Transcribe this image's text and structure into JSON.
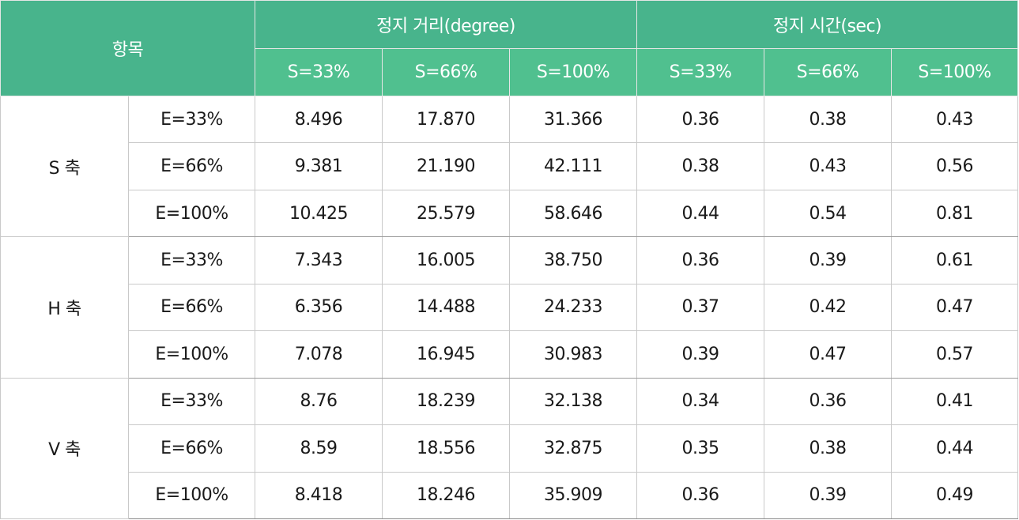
{
  "header": {
    "item_label": "항목",
    "group_distance": "정지 거리(degree)",
    "group_time": "정지 시간(sec)",
    "sub_columns": [
      "S=33%",
      "S=66%",
      "S=100%",
      "S=33%",
      "S=66%",
      "S=100%"
    ]
  },
  "groups": [
    {
      "axis": "S 축",
      "rows": [
        {
          "label": "E=33%",
          "values": [
            "8.496",
            "17.870",
            "31.366",
            "0.36",
            "0.38",
            "0.43"
          ]
        },
        {
          "label": "E=66%",
          "values": [
            "9.381",
            "21.190",
            "42.111",
            "0.38",
            "0.43",
            "0.56"
          ]
        },
        {
          "label": "E=100%",
          "values": [
            "10.425",
            "25.579",
            "58.646",
            "0.44",
            "0.54",
            "0.81"
          ]
        }
      ]
    },
    {
      "axis": "H 축",
      "rows": [
        {
          "label": "E=33%",
          "values": [
            "7.343",
            "16.005",
            "38.750",
            "0.36",
            "0.39",
            "0.61"
          ]
        },
        {
          "label": "E=66%",
          "values": [
            "6.356",
            "14.488",
            "24.233",
            "0.37",
            "0.42",
            "0.47"
          ]
        },
        {
          "label": "E=100%",
          "values": [
            "7.078",
            "16.945",
            "30.983",
            "0.39",
            "0.47",
            "0.57"
          ]
        }
      ]
    },
    {
      "axis": "V 축",
      "rows": [
        {
          "label": "E=33%",
          "values": [
            "8.76",
            "18.239",
            "32.138",
            "0.34",
            "0.36",
            "0.41"
          ]
        },
        {
          "label": "E=66%",
          "values": [
            "8.59",
            "18.556",
            "32.875",
            "0.35",
            "0.38",
            "0.44"
          ]
        },
        {
          "label": "E=100%",
          "values": [
            "8.418",
            "18.246",
            "35.909",
            "0.36",
            "0.39",
            "0.49"
          ]
        }
      ]
    }
  ],
  "colors": {
    "header_dark": "#48b48c",
    "header_light": "#50c08f",
    "border": "#c9c9c9"
  }
}
